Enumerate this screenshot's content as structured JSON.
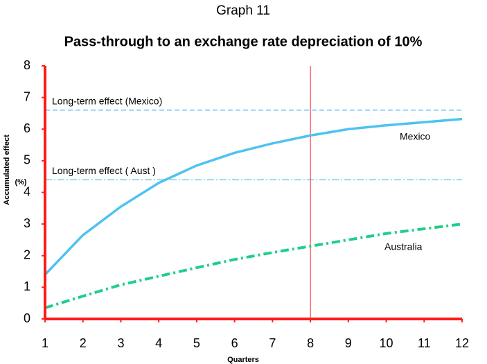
{
  "chart_data": {
    "type": "line",
    "title": "Graph 11",
    "subtitle": "Pass-through to an exchange rate depreciation of 10%",
    "x_label": "Quarters",
    "y_label": "Accumulated effect",
    "y_label_unit": "(%)",
    "x": [
      1,
      2,
      3,
      4,
      5,
      6,
      7,
      8,
      9,
      10,
      11,
      12
    ],
    "series": [
      {
        "name": "Mexico",
        "color": "#4dc3f0",
        "values": [
          1.4,
          2.65,
          3.55,
          4.3,
          4.85,
          5.25,
          5.55,
          5.8,
          6.0,
          6.12,
          6.22,
          6.32
        ]
      },
      {
        "name": "Australia",
        "color": "#1fcf8a",
        "values": [
          0.35,
          0.72,
          1.08,
          1.35,
          1.62,
          1.88,
          2.1,
          2.3,
          2.5,
          2.7,
          2.85,
          3.0
        ]
      }
    ],
    "hlines": [
      {
        "label": "Long-term effect (Mexico)",
        "value": 6.6
      },
      {
        "label": "Long-term effect ( Aust )",
        "value": 4.4
      }
    ],
    "vline": 8,
    "xlim": [
      1,
      12
    ],
    "ylim": [
      0,
      8
    ],
    "xticks": [
      1,
      2,
      3,
      4,
      5,
      6,
      7,
      8,
      9,
      10,
      11,
      12
    ],
    "yticks": [
      0,
      1,
      2,
      3,
      4,
      5,
      6,
      7,
      8
    ],
    "axis_color": "#ff1a1a"
  }
}
